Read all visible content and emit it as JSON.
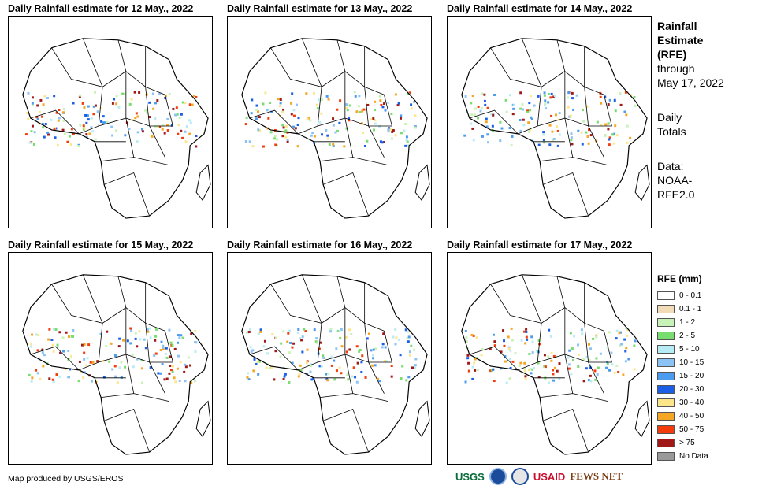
{
  "panels": [
    {
      "title": "Daily Rainfall estimate for 12 May., 2022"
    },
    {
      "title": "Daily Rainfall estimate for 13 May., 2022"
    },
    {
      "title": "Daily Rainfall estimate for 14 May., 2022"
    },
    {
      "title": "Daily Rainfall estimate for 15 May., 2022"
    },
    {
      "title": "Daily Rainfall estimate for 16 May., 2022"
    },
    {
      "title": "Daily Rainfall estimate for 17 May., 2022"
    }
  ],
  "sidebar": {
    "heading_lines": [
      "Rainfall",
      "Estimate",
      "(RFE)"
    ],
    "through_lines": [
      "through",
      "May 17, 2022"
    ],
    "totals_lines": [
      "Daily",
      "Totals"
    ],
    "data_lines": [
      "Data:",
      "NOAA-",
      "RFE2.0"
    ]
  },
  "legend": {
    "title": "RFE (mm)",
    "items": [
      {
        "label": "0 - 0.1",
        "color": "#ffffff"
      },
      {
        "label": "0.1 - 1",
        "color": "#f2dcb8"
      },
      {
        "label": "1 - 2",
        "color": "#c7f3b6"
      },
      {
        "label": "2 - 5",
        "color": "#78dc6e"
      },
      {
        "label": "5 - 10",
        "color": "#b7ecf5"
      },
      {
        "label": "10 - 15",
        "color": "#8cc3f5"
      },
      {
        "label": "15 - 20",
        "color": "#4b9bee"
      },
      {
        "label": "20 - 30",
        "color": "#1a5fe6"
      },
      {
        "label": "30 - 40",
        "color": "#fde68a"
      },
      {
        "label": "40 - 50",
        "color": "#f5a623"
      },
      {
        "label": "50 - 75",
        "color": "#f23c0c"
      },
      {
        "label": "> 75",
        "color": "#a01818"
      },
      {
        "label": "No Data",
        "color": "#999999"
      }
    ]
  },
  "credit": "Map produced by USGS/EROS",
  "logos": [
    "USGS",
    "USAID",
    "FEWS NET"
  ]
}
